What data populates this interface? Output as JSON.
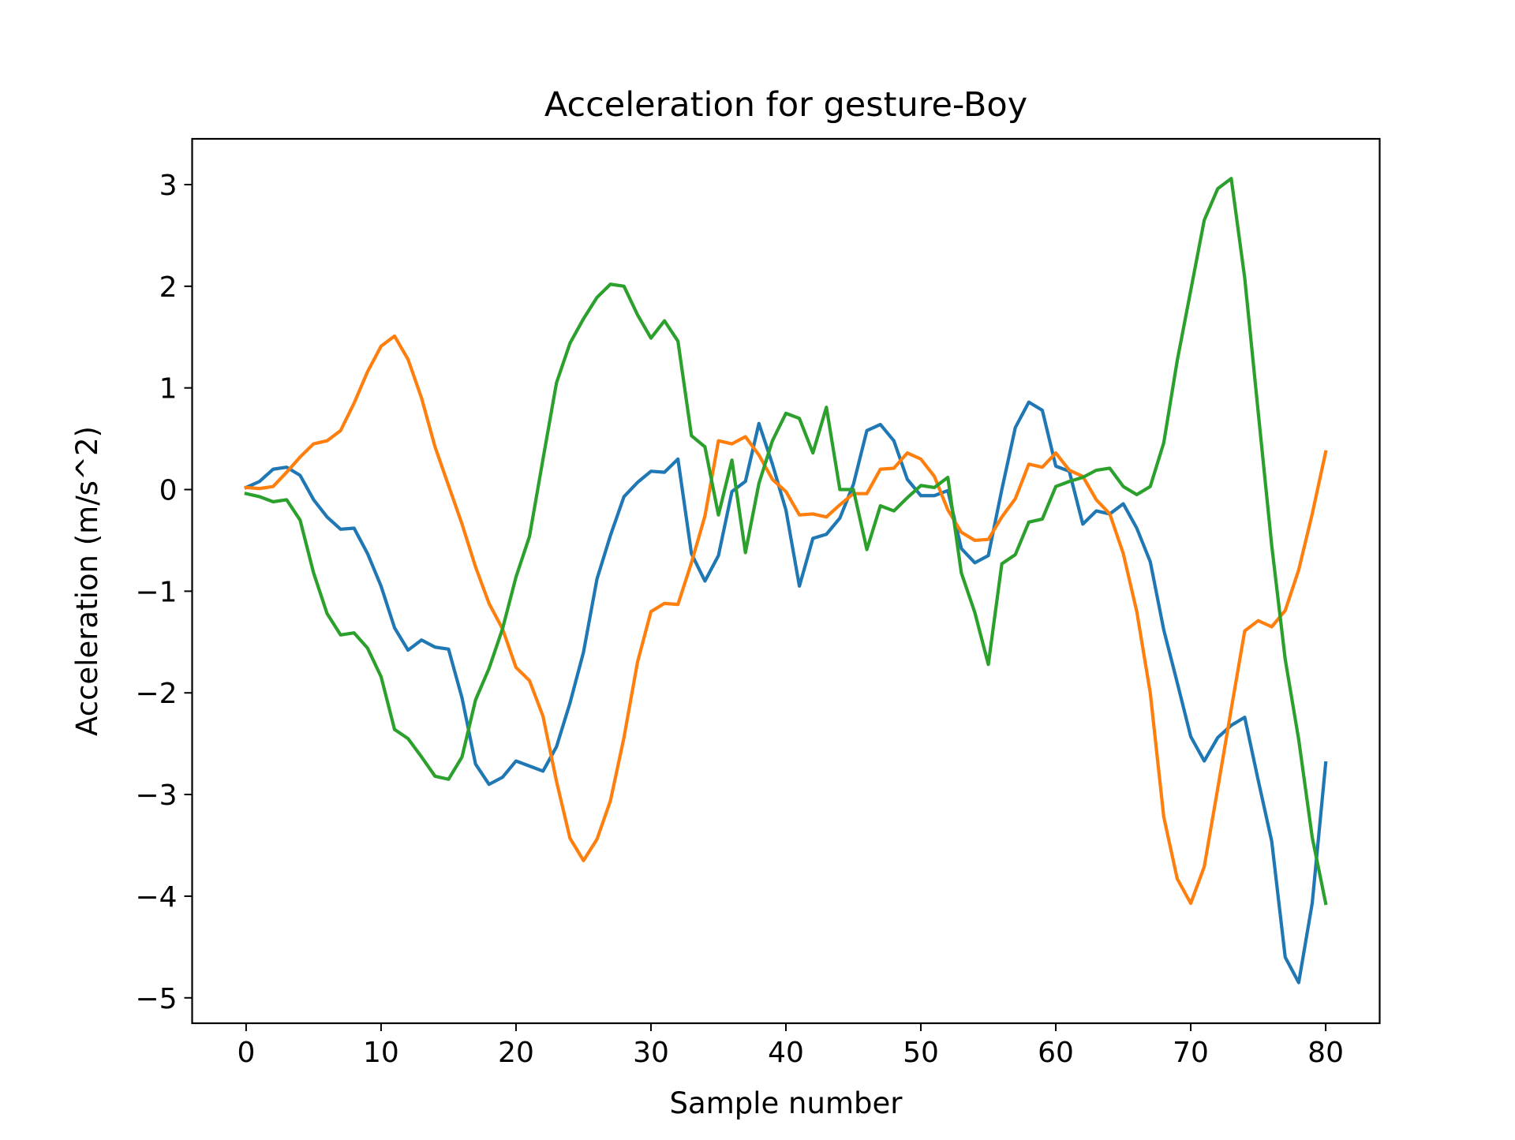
{
  "chart_data": {
    "type": "line",
    "title": "Acceleration for gesture-Boy",
    "xlabel": "Sample number",
    "ylabel": "Acceleration (m/s^2)",
    "xlim": [
      -4,
      84
    ],
    "ylim": [
      -5.25,
      3.45
    ],
    "xticks": [
      0,
      10,
      20,
      30,
      40,
      50,
      60,
      70,
      80
    ],
    "xtick_labels": [
      "0",
      "10",
      "20",
      "30",
      "40",
      "50",
      "60",
      "70",
      "80"
    ],
    "yticks": [
      3,
      2,
      1,
      0,
      -1,
      -2,
      -3,
      -4,
      -5
    ],
    "ytick_labels": [
      "3",
      "2",
      "1",
      "0",
      "−1",
      "−2",
      "−3",
      "−4",
      "−5"
    ],
    "grid": false,
    "x": [
      0,
      1,
      2,
      3,
      4,
      5,
      6,
      7,
      8,
      9,
      10,
      11,
      12,
      13,
      14,
      15,
      16,
      17,
      18,
      19,
      20,
      21,
      22,
      23,
      24,
      25,
      26,
      27,
      28,
      29,
      30,
      31,
      32,
      33,
      34,
      35,
      36,
      37,
      38,
      39,
      40,
      41,
      42,
      43,
      44,
      45,
      46,
      47,
      48,
      49,
      50,
      51,
      52,
      53,
      54,
      55,
      56,
      57,
      58,
      59,
      60,
      61,
      62,
      63,
      64,
      65,
      66,
      67,
      68,
      69,
      70,
      71,
      72,
      73,
      74,
      75,
      76,
      77,
      78,
      79,
      80
    ],
    "series": [
      {
        "color": "#1f77b4",
        "values": [
          0.02,
          0.08,
          0.2,
          0.22,
          0.14,
          -0.1,
          -0.27,
          -0.39,
          -0.38,
          -0.63,
          -0.95,
          -1.36,
          -1.58,
          -1.48,
          -1.55,
          -1.57,
          -2.05,
          -2.7,
          -2.9,
          -2.83,
          -2.67,
          -2.72,
          -2.77,
          -2.53,
          -2.1,
          -1.6,
          -0.88,
          -0.45,
          -0.07,
          0.07,
          0.18,
          0.17,
          0.3,
          -0.63,
          -0.9,
          -0.65,
          -0.02,
          0.08,
          0.65,
          0.25,
          -0.2,
          -0.95,
          -0.48,
          -0.44,
          -0.28,
          0.05,
          0.58,
          0.64,
          0.48,
          0.1,
          -0.06,
          -0.06,
          -0.01,
          -0.58,
          -0.72,
          -0.65,
          0.0,
          0.61,
          0.86,
          0.78,
          0.23,
          0.18,
          -0.34,
          -0.21,
          -0.24,
          -0.14,
          -0.38,
          -0.71,
          -1.38,
          -1.9,
          -2.43,
          -2.67,
          -2.44,
          -2.32,
          -2.24,
          -2.86,
          -3.46,
          -4.6,
          -4.85,
          -4.07,
          -2.69
        ]
      },
      {
        "color": "#ff7f0e",
        "values": [
          0.02,
          0.01,
          0.03,
          0.17,
          0.32,
          0.45,
          0.48,
          0.58,
          0.85,
          1.16,
          1.41,
          1.51,
          1.28,
          0.9,
          0.42,
          0.04,
          -0.34,
          -0.76,
          -1.12,
          -1.37,
          -1.75,
          -1.88,
          -2.23,
          -2.87,
          -3.43,
          -3.65,
          -3.44,
          -3.06,
          -2.44,
          -1.7,
          -1.2,
          -1.12,
          -1.13,
          -0.72,
          -0.26,
          0.48,
          0.45,
          0.52,
          0.34,
          0.1,
          -0.02,
          -0.25,
          -0.24,
          -0.27,
          -0.15,
          -0.04,
          -0.04,
          0.2,
          0.21,
          0.36,
          0.3,
          0.13,
          -0.2,
          -0.42,
          -0.5,
          -0.49,
          -0.27,
          -0.09,
          0.25,
          0.22,
          0.36,
          0.19,
          0.13,
          -0.1,
          -0.24,
          -0.63,
          -1.2,
          -2.0,
          -3.22,
          -3.83,
          -4.07,
          -3.71,
          -2.94,
          -2.16,
          -1.39,
          -1.29,
          -1.35,
          -1.19,
          -0.79,
          -0.24,
          0.37
        ]
      },
      {
        "color": "#2ca02c",
        "values": [
          -0.04,
          -0.07,
          -0.12,
          -0.1,
          -0.3,
          -0.82,
          -1.22,
          -1.43,
          -1.41,
          -1.56,
          -1.84,
          -2.36,
          -2.45,
          -2.63,
          -2.82,
          -2.85,
          -2.63,
          -2.07,
          -1.76,
          -1.37,
          -0.86,
          -0.46,
          0.3,
          1.05,
          1.44,
          1.68,
          1.89,
          2.02,
          2.0,
          1.72,
          1.49,
          1.66,
          1.46,
          0.53,
          0.42,
          -0.25,
          0.29,
          -0.62,
          0.06,
          0.48,
          0.75,
          0.7,
          0.36,
          0.81,
          0.0,
          0.0,
          -0.59,
          -0.16,
          -0.21,
          -0.08,
          0.04,
          0.02,
          0.12,
          -0.82,
          -1.21,
          -1.72,
          -0.73,
          -0.64,
          -0.32,
          -0.29,
          0.03,
          0.08,
          0.12,
          0.19,
          0.21,
          0.03,
          -0.05,
          0.03,
          0.46,
          1.27,
          1.96,
          2.65,
          2.96,
          3.06,
          2.08,
          0.76,
          -0.55,
          -1.67,
          -2.46,
          -3.42,
          -4.07
        ]
      }
    ]
  }
}
